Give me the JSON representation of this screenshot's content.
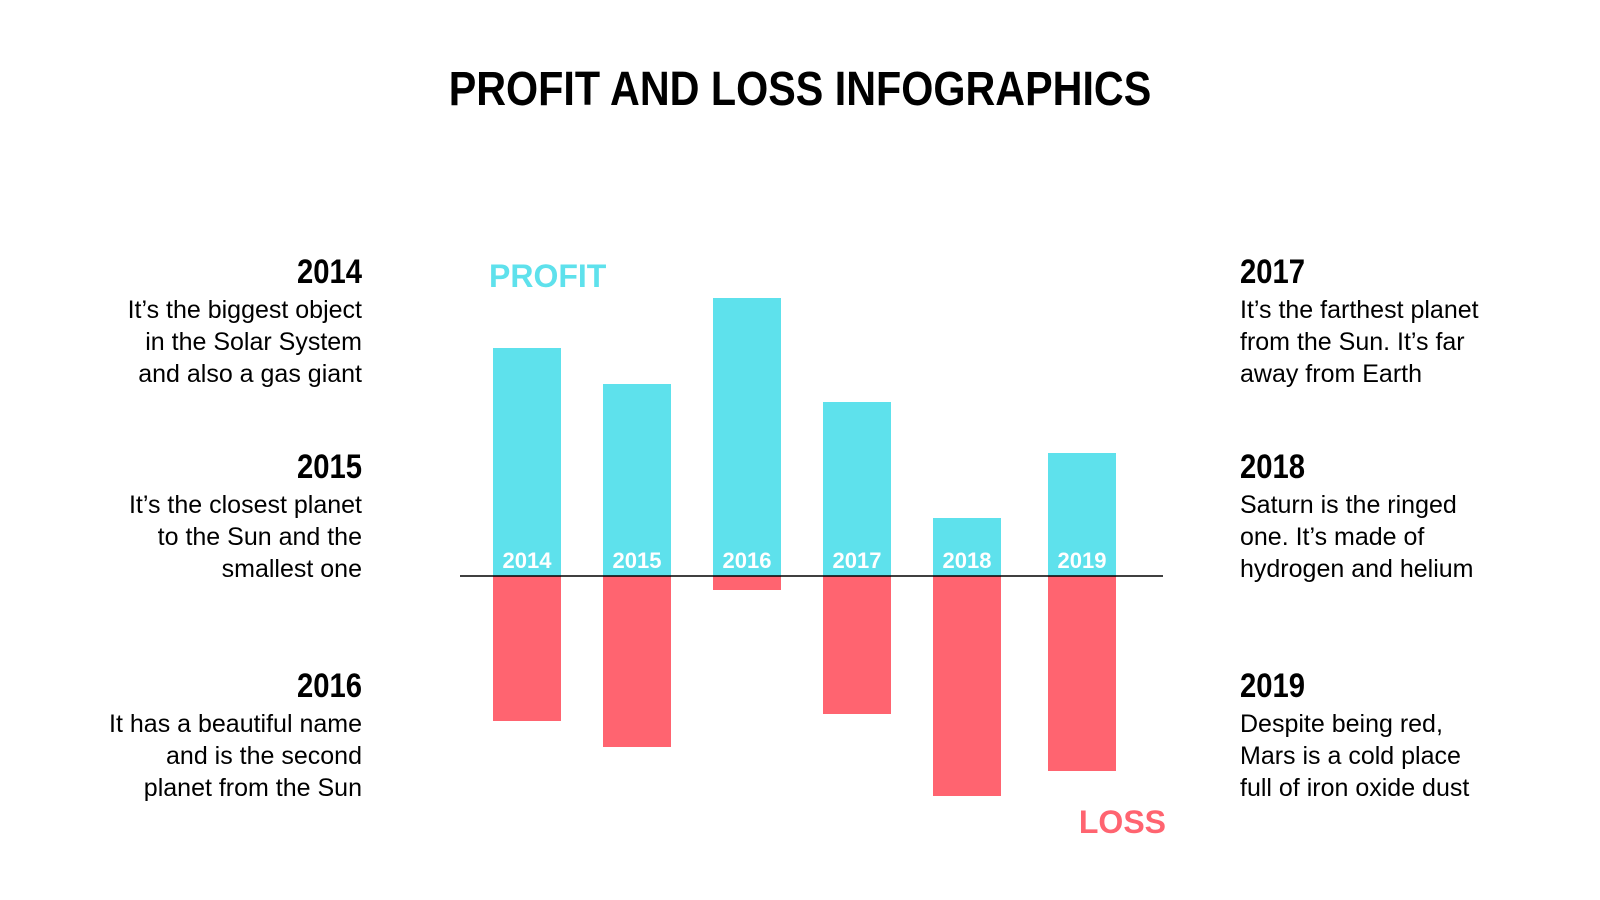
{
  "title": "PROFIT AND LOSS INFOGRAPHICS",
  "colors": {
    "profit": "#5ee1ec",
    "loss": "#ff6470",
    "axis": "#000000",
    "text": "#000000"
  },
  "left_notes": [
    {
      "year": "2014",
      "text": "It’s the biggest object\nin the Solar System\nand also a gas giant"
    },
    {
      "year": "2015",
      "text": "It’s the closest planet\nto the Sun and the\nsmallest one"
    },
    {
      "year": "2016",
      "text": "It has a beautiful name\nand is the second\nplanet from the Sun"
    }
  ],
  "right_notes": [
    {
      "year": "2017",
      "text": "It’s the farthest planet\nfrom the Sun. It’s far\naway from Earth"
    },
    {
      "year": "2018",
      "text": "Saturn is the ringed\none. It’s made of\nhydrogen and helium"
    },
    {
      "year": "2019",
      "text": "Despite being red,\nMars is a cold place\nfull of iron oxide dust"
    }
  ],
  "chart_data": {
    "type": "bar",
    "categories": [
      "2014",
      "2015",
      "2016",
      "2017",
      "2018",
      "2019"
    ],
    "series": [
      {
        "name": "PROFIT",
        "values": [
          228,
          192,
          278,
          174,
          58,
          123
        ]
      },
      {
        "name": "LOSS",
        "values": [
          -145,
          -171,
          -14,
          -138,
          -220,
          -195
        ]
      }
    ],
    "ylim": [
      -230,
      290
    ],
    "grid": false,
    "legend": {
      "profit_position": "top-left",
      "loss_position": "bottom-right"
    }
  }
}
